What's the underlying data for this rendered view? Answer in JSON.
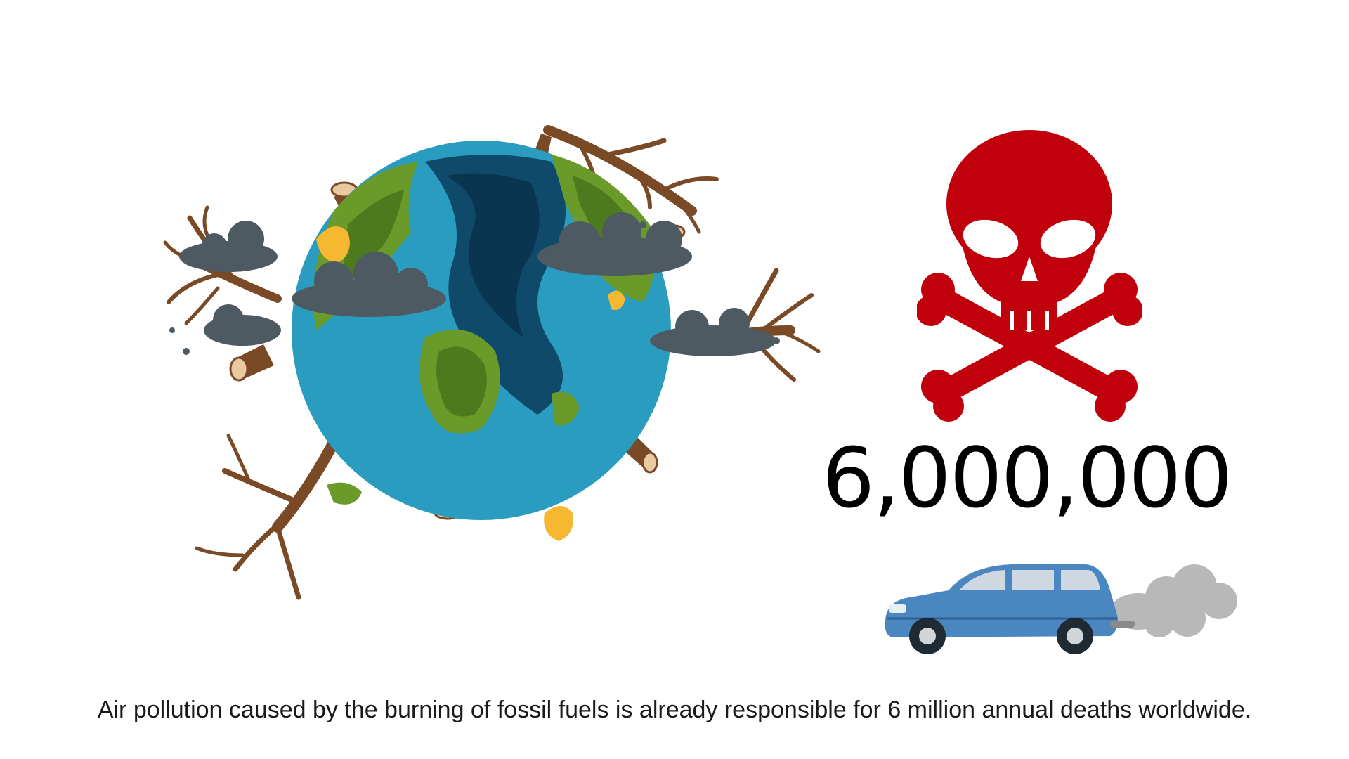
{
  "scene": {
    "illustrations": [
      {
        "name": "dying-earth-illustration",
        "icon": "earth-with-dead-trees-icon"
      },
      {
        "name": "skull-crossbones-illustration",
        "icon": "skull-crossbones-icon"
      },
      {
        "name": "polluting-car-illustration",
        "icon": "car-exhaust-icon"
      }
    ],
    "colors": {
      "background": "#ffffff",
      "skull": "#c0000b",
      "ocean": "#2a9cc0",
      "land": "#6a9a2a",
      "tree_bark": "#7a4a26",
      "smoke": "#4e5a62",
      "car": "#4a86c0",
      "exhaust": "#b8b8b8"
    }
  },
  "stat": {
    "value": "6,000,000"
  },
  "caption": {
    "text": "Air pollution caused by the burning of fossil fuels is already responsible for 6 million annual deaths worldwide."
  }
}
